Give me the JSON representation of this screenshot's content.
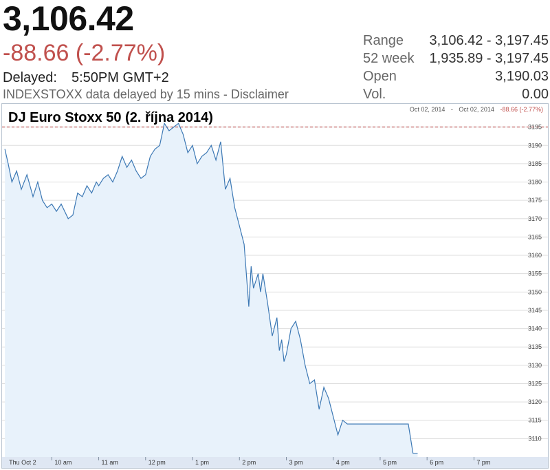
{
  "quote": {
    "price": "3,106.42",
    "change": "-88.66 (-2.77%)",
    "delayed_label": "Delayed:",
    "delayed_time": "5:50PM GMT+2",
    "disclaimer": "INDEXSTOXX data delayed by 15 mins - Disclaimer"
  },
  "stats": [
    {
      "key": "Range",
      "value": "3,106.42 - 3,197.45"
    },
    {
      "key": "52 week",
      "value": "1,935.89 - 3,197.45"
    },
    {
      "key": "Open",
      "value": "3,190.03"
    },
    {
      "key": "Vol.",
      "value": "0.00"
    }
  ],
  "colors": {
    "line": "#3c78b4",
    "fill": "#e8f2fb",
    "down": "#c0504d",
    "ref_line": "#b03030",
    "grid": "#dddddd"
  },
  "chart_data": {
    "type": "area",
    "title": "DJ Euro Stoxx 50 (2. října 2014)",
    "range_label": {
      "from": "Oct 02, 2014",
      "separator": "-",
      "to": "Oct 02, 2014",
      "change": "-88.66 (-2.77%)"
    },
    "xlabel": "",
    "ylabel": "",
    "x_ticks": [
      {
        "label": "Thu Oct 2",
        "value": 9.0
      },
      {
        "label": "10 am",
        "value": 10.0
      },
      {
        "label": "11 am",
        "value": 11.0
      },
      {
        "label": "12 pm",
        "value": 12.0
      },
      {
        "label": "1 pm",
        "value": 13.0
      },
      {
        "label": "2 pm",
        "value": 14.0
      },
      {
        "label": "3 pm",
        "value": 15.0
      },
      {
        "label": "4 pm",
        "value": 16.0
      },
      {
        "label": "5 pm",
        "value": 17.0
      },
      {
        "label": "6 pm",
        "value": 18.0
      },
      {
        "label": "7 pm",
        "value": 19.0
      }
    ],
    "xlim": [
      8.94,
      19.8
    ],
    "ylim": [
      3105,
      3200
    ],
    "y_ticks": [
      3110,
      3115,
      3120,
      3125,
      3130,
      3135,
      3140,
      3145,
      3150,
      3155,
      3160,
      3165,
      3170,
      3175,
      3180,
      3185,
      3190,
      3195
    ],
    "reference_line": 3195,
    "grid": true,
    "legend": "none",
    "x": [
      9.0,
      9.07,
      9.15,
      9.25,
      9.35,
      9.47,
      9.6,
      9.7,
      9.8,
      9.9,
      10.0,
      10.1,
      10.2,
      10.35,
      10.45,
      10.55,
      10.65,
      10.75,
      10.85,
      10.95,
      11.0,
      11.1,
      11.2,
      11.3,
      11.4,
      11.5,
      11.6,
      11.7,
      11.8,
      11.9,
      12.0,
      12.1,
      12.2,
      12.3,
      12.4,
      12.5,
      12.6,
      12.7,
      12.8,
      12.9,
      13.0,
      13.1,
      13.2,
      13.3,
      13.4,
      13.5,
      13.6,
      13.7,
      13.8,
      13.9,
      14.0,
      14.1,
      14.2,
      14.25,
      14.3,
      14.4,
      14.45,
      14.5,
      14.6,
      14.7,
      14.8,
      14.85,
      14.9,
      14.95,
      15.0,
      15.1,
      15.2,
      15.3,
      15.4,
      15.5,
      15.6,
      15.7,
      15.8,
      15.9,
      16.0,
      16.1,
      16.2,
      16.3,
      16.35,
      16.4,
      16.5,
      16.6,
      16.7,
      16.8,
      16.9,
      17.0,
      17.1,
      17.2,
      17.3,
      17.4,
      17.5,
      17.6,
      17.7,
      17.8
    ],
    "values": [
      3189,
      3185,
      3180,
      3183,
      3178,
      3182,
      3176,
      3180,
      3175,
      3173,
      3174,
      3172,
      3174,
      3170,
      3171,
      3177,
      3176,
      3179,
      3177,
      3180,
      3179,
      3181,
      3182,
      3180,
      3183,
      3187,
      3184,
      3186,
      3183,
      3181,
      3182,
      3187,
      3189,
      3190,
      3196,
      3194,
      3195,
      3196,
      3193,
      3188,
      3190,
      3185,
      3187,
      3188,
      3190,
      3186,
      3191,
      3178,
      3181,
      3173,
      3168,
      3163,
      3146,
      3157,
      3151,
      3155,
      3150,
      3155,
      3147,
      3138,
      3143,
      3134,
      3137,
      3131,
      3133,
      3140,
      3142,
      3137,
      3130,
      3125,
      3126,
      3118,
      3124,
      3121,
      3116,
      3111,
      3115,
      3114,
      3114,
      3114,
      3114,
      3114,
      3114,
      3114,
      3114,
      3114,
      3114,
      3114,
      3114,
      3114,
      3114,
      3114,
      3106,
      3106
    ]
  }
}
